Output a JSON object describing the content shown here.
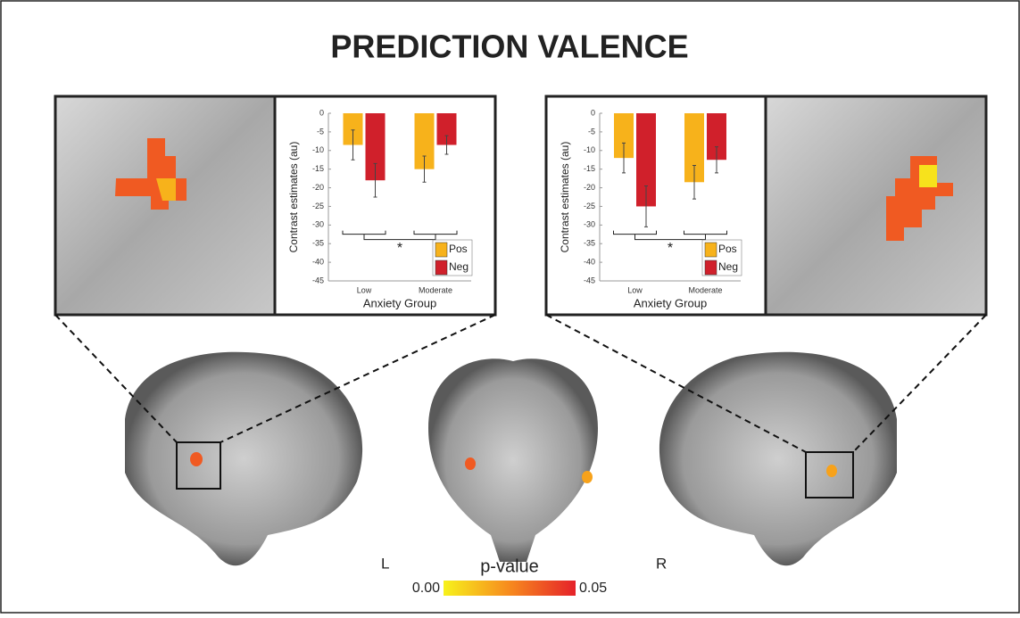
{
  "title": "PREDICTION VALENCE",
  "chart_data": [
    {
      "type": "bar",
      "y_label": "Contrast estimates (au)",
      "x_label": "Anxiety Group",
      "categories": [
        "Low",
        "Moderate"
      ],
      "series": [
        {
          "name": "Pos",
          "color": "#f7b21b",
          "values": [
            -8.5,
            -15
          ],
          "errors": [
            4,
            3.5
          ]
        },
        {
          "name": "Neg",
          "color": "#d0202b",
          "values": [
            -18,
            -8.5
          ],
          "errors": [
            4.5,
            2.5
          ]
        }
      ],
      "ylim": [
        -45,
        0
      ],
      "yticks": [
        0,
        -5,
        -10,
        -15,
        -20,
        -25,
        -30,
        -35,
        -40,
        -45
      ],
      "annotation": "*"
    },
    {
      "type": "bar",
      "y_label": "Contrast estimates (au)",
      "x_label": "Anxiety Group",
      "categories": [
        "Low",
        "Moderate"
      ],
      "series": [
        {
          "name": "Pos",
          "color": "#f7b21b",
          "values": [
            -12,
            -18.5
          ],
          "errors": [
            4,
            4.5
          ]
        },
        {
          "name": "Neg",
          "color": "#d0202b",
          "values": [
            -25,
            -12.5
          ],
          "errors": [
            5.5,
            3.5
          ]
        }
      ],
      "ylim": [
        -45,
        0
      ],
      "yticks": [
        0,
        -5,
        -10,
        -15,
        -20,
        -25,
        -30,
        -35,
        -40,
        -45
      ],
      "annotation": "*"
    }
  ],
  "hemisphere_labels": [
    "L",
    "R"
  ],
  "colorbar": {
    "label": "p-value",
    "ticks": [
      {
        "value": 0,
        "label": "0.00"
      },
      {
        "value": 0.05,
        "label": "0.05"
      }
    ]
  }
}
